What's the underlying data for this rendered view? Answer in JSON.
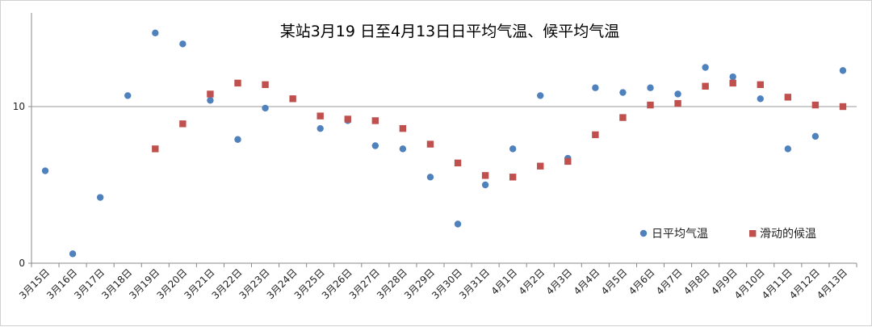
{
  "chart_data": {
    "type": "scatter",
    "title": "某站3月19 日至4月13日日平均气温、候平均气温",
    "categories": [
      "3月15日",
      "3月16日",
      "3月17日",
      "3月18日",
      "3月19日",
      "3月20日",
      "3月21日",
      "3月22日",
      "3月23日",
      "3月24日",
      "3月25日",
      "3月26日",
      "3月27日",
      "3月28日",
      "3月29日",
      "3月30日",
      "3月31日",
      "4月1日",
      "4月2日",
      "4月3日",
      "4月4日",
      "4月5日",
      "4月6日",
      "4月7日",
      "4月8日",
      "4月9日",
      "4月10日",
      "4月11日",
      "4月12日",
      "4月13日"
    ],
    "yticks": [
      "0",
      "10"
    ],
    "ylim": [
      0,
      16
    ],
    "series": [
      {
        "name": "日平均气温",
        "marker": "circle",
        "color": "#4f81bd",
        "values": [
          5.9,
          0.6,
          4.2,
          10.7,
          14.7,
          14.0,
          10.4,
          7.9,
          9.9,
          10.5,
          8.6,
          9.1,
          7.5,
          7.3,
          5.5,
          2.5,
          5.0,
          7.3,
          10.7,
          6.7,
          11.2,
          10.9,
          11.2,
          10.8,
          12.5,
          11.9,
          10.5,
          7.3,
          8.1,
          12.3
        ]
      },
      {
        "name": "滑动的候温",
        "marker": "square",
        "color": "#c0504d",
        "values": [
          null,
          null,
          null,
          null,
          7.3,
          8.9,
          10.8,
          11.5,
          11.4,
          10.5,
          9.4,
          9.2,
          9.1,
          8.6,
          7.6,
          6.4,
          5.6,
          5.5,
          6.2,
          6.5,
          8.2,
          9.3,
          10.1,
          10.2,
          11.3,
          11.5,
          11.4,
          10.6,
          10.1,
          10.0
        ]
      }
    ],
    "grid": "horizontal line at 10",
    "legend": "bottom-right"
  }
}
